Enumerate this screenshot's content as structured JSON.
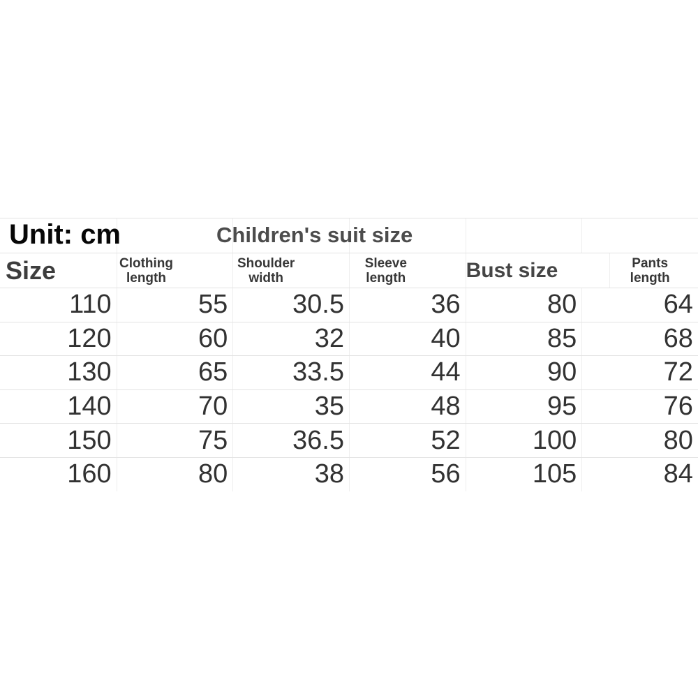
{
  "sheet": {
    "unit_label": "Unit: cm",
    "title": "Children's suit size",
    "size_header": "Size",
    "col_headers": [
      {
        "line1": "Clothing",
        "line2": "length"
      },
      {
        "line1": "Shoulder",
        "line2": "width"
      },
      {
        "line1": "Sleeve",
        "line2": "length"
      },
      {
        "line1": "Pants",
        "line2": "length"
      }
    ],
    "bust_header": "Bust size",
    "rows": [
      {
        "size": "110",
        "clothing_length": "55",
        "shoulder_width": "30.5",
        "sleeve_length": "36",
        "bust": "80",
        "pants_length": "64"
      },
      {
        "size": "120",
        "clothing_length": "60",
        "shoulder_width": "32",
        "sleeve_length": "40",
        "bust": "85",
        "pants_length": "68"
      },
      {
        "size": "130",
        "clothing_length": "65",
        "shoulder_width": "33.5",
        "sleeve_length": "44",
        "bust": "90",
        "pants_length": "72"
      },
      {
        "size": "140",
        "clothing_length": "70",
        "shoulder_width": "35",
        "sleeve_length": "48",
        "bust": "95",
        "pants_length": "76"
      },
      {
        "size": "150",
        "clothing_length": "75",
        "shoulder_width": "36.5",
        "sleeve_length": "52",
        "bust": "100",
        "pants_length": "80"
      },
      {
        "size": "160",
        "clothing_length": "80",
        "shoulder_width": "38",
        "sleeve_length": "56",
        "bust": "105",
        "pants_length": "84"
      }
    ]
  },
  "chart_data": {
    "type": "table",
    "title": "Children's suit size",
    "unit": "cm",
    "columns": [
      "Size",
      "Clothing length",
      "Shoulder width",
      "Sleeve length",
      "Bust size",
      "Pants length"
    ],
    "rows": [
      [
        110,
        55,
        30.5,
        36,
        80,
        64
      ],
      [
        120,
        60,
        32,
        40,
        85,
        68
      ],
      [
        130,
        65,
        33.5,
        44,
        90,
        72
      ],
      [
        140,
        70,
        35,
        48,
        95,
        76
      ],
      [
        150,
        75,
        36.5,
        52,
        100,
        80
      ],
      [
        160,
        80,
        38,
        56,
        105,
        84
      ]
    ]
  },
  "colors": {
    "background": "#ffffff",
    "grid_line_horizontal": "#e3e3e3",
    "grid_line_vertical": "#eeeeee",
    "unit_text": "#070707",
    "title_text": "#4c4c4c",
    "header_text": "#373737",
    "number_text": "#323232"
  }
}
